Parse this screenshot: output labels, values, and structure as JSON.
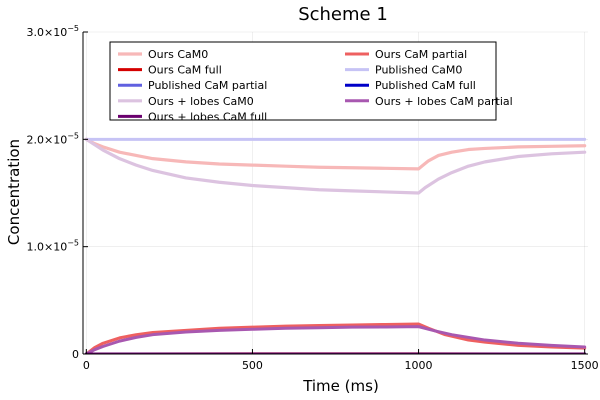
{
  "chart_data": {
    "type": "line",
    "title": "Scheme 1",
    "xlabel": "Time (ms)",
    "ylabel": "Concentration",
    "xlim": [
      -10,
      1510
    ],
    "ylim": [
      0,
      3e-05
    ],
    "x_ticks": [
      0,
      500,
      1000,
      1500
    ],
    "x_tick_labels": [
      "0",
      "500",
      "1000",
      "1500"
    ],
    "y_ticks": [
      0,
      1e-05,
      2e-05,
      3e-05
    ],
    "y_tick_labels": [
      {
        "mantissa": "0",
        "exponent": ""
      },
      {
        "mantissa": "1.0×10",
        "exponent": "−5"
      },
      {
        "mantissa": "2.0×10",
        "exponent": "−5"
      },
      {
        "mantissa": "3.0×10",
        "exponent": "−5"
      }
    ],
    "grid": true,
    "legend_position": "top",
    "series": [
      {
        "name": "Ours CaM0",
        "color": "#f7b8b8",
        "width": 3.2,
        "x": [
          0,
          25,
          50,
          100,
          150,
          200,
          300,
          400,
          500,
          600,
          700,
          800,
          900,
          1000,
          1010,
          1030,
          1060,
          1100,
          1150,
          1200,
          1300,
          1400,
          1500
        ],
        "y": [
          2e-05,
          1.96e-05,
          1.93e-05,
          1.88e-05,
          1.85e-05,
          1.82e-05,
          1.79e-05,
          1.77e-05,
          1.76e-05,
          1.75e-05,
          1.74e-05,
          1.735e-05,
          1.73e-05,
          1.725e-05,
          1.75e-05,
          1.8e-05,
          1.85e-05,
          1.88e-05,
          1.905e-05,
          1.915e-05,
          1.93e-05,
          1.935e-05,
          1.94e-05
        ]
      },
      {
        "name": "Ours CaM partial",
        "color": "#ee6060",
        "width": 3.0,
        "x": [
          0,
          25,
          50,
          100,
          150,
          200,
          300,
          400,
          500,
          600,
          700,
          800,
          900,
          1000,
          1030,
          1080,
          1150,
          1200,
          1300,
          1400,
          1500
        ],
        "y": [
          0.0,
          6e-07,
          1e-06,
          1.5e-06,
          1.8e-06,
          2e-06,
          2.2e-06,
          2.4e-06,
          2.5e-06,
          2.6e-06,
          2.65e-06,
          2.7e-06,
          2.75e-06,
          2.8e-06,
          2.4e-06,
          1.8e-06,
          1.3e-06,
          1.1e-06,
          8e-07,
          6.5e-07,
          5.5e-07
        ]
      },
      {
        "name": "Ours CaM full",
        "color": "#d40000",
        "width": 3.0,
        "x": [
          0,
          500,
          1000,
          1500
        ],
        "y": [
          0.0,
          1e-08,
          1e-08,
          0.0
        ]
      },
      {
        "name": "Published CaM0",
        "color": "#c6c3f5",
        "width": 3.0,
        "x": [
          0,
          1500
        ],
        "y": [
          2e-05,
          2e-05
        ]
      },
      {
        "name": "Published CaM partial",
        "color": "#6060e0",
        "width": 3.0,
        "x": [
          0,
          1500
        ],
        "y": [
          0.0,
          0.0
        ]
      },
      {
        "name": "Published CaM full",
        "color": "#0000c8",
        "width": 3.0,
        "x": [
          0,
          1500
        ],
        "y": [
          0.0,
          0.0
        ]
      },
      {
        "name": "Ours + lobes CaM0",
        "color": "#dcc3e0",
        "width": 3.2,
        "x": [
          0,
          25,
          50,
          100,
          150,
          200,
          300,
          400,
          500,
          600,
          700,
          800,
          900,
          1000,
          1020,
          1060,
          1100,
          1150,
          1200,
          1300,
          1400,
          1500
        ],
        "y": [
          2e-05,
          1.95e-05,
          1.9e-05,
          1.82e-05,
          1.76e-05,
          1.71e-05,
          1.64e-05,
          1.6e-05,
          1.57e-05,
          1.55e-05,
          1.53e-05,
          1.52e-05,
          1.51e-05,
          1.5e-05,
          1.55e-05,
          1.63e-05,
          1.69e-05,
          1.75e-05,
          1.79e-05,
          1.84e-05,
          1.865e-05,
          1.88e-05
        ]
      },
      {
        "name": "Ours + lobes CaM partial",
        "color": "#a858b0",
        "width": 3.0,
        "x": [
          0,
          25,
          50,
          100,
          150,
          200,
          300,
          400,
          500,
          600,
          700,
          800,
          900,
          1000,
          1050,
          1100,
          1200,
          1300,
          1400,
          1500
        ],
        "y": [
          0.0,
          4e-07,
          7e-07,
          1.2e-06,
          1.55e-06,
          1.8e-06,
          2.05e-06,
          2.2e-06,
          2.3e-06,
          2.4e-06,
          2.45e-06,
          2.5e-06,
          2.52e-06,
          2.55e-06,
          2.15e-06,
          1.8e-06,
          1.3e-06,
          1e-06,
          8e-07,
          6.5e-07
        ]
      },
      {
        "name": "Ours + lobes CaM full",
        "color": "#6a006e",
        "width": 3.0,
        "x": [
          0,
          1500
        ],
        "y": [
          0.0,
          0.0
        ]
      }
    ],
    "legend_order": [
      0,
      1,
      2,
      3,
      4,
      5,
      6,
      7,
      8
    ]
  }
}
